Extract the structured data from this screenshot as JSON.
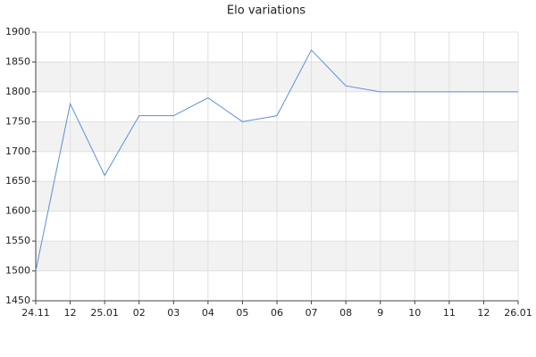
{
  "chart_data": {
    "type": "line",
    "title": "Elo variations",
    "categories": [
      "24.11",
      "12",
      "25.01",
      "02",
      "03",
      "04",
      "05",
      "06",
      "07",
      "08",
      "9",
      "10",
      "11",
      "12",
      "26.01"
    ],
    "series": [
      {
        "name": "Elo",
        "color": "#5b8fd9",
        "values": [
          1500,
          1780,
          1660,
          1760,
          1760,
          1790,
          1750,
          1760,
          1870,
          1810,
          1800,
          1800,
          1800,
          1800,
          1800
        ]
      }
    ],
    "ylim": [
      1450,
      1900
    ],
    "yticks": [
      1450,
      1500,
      1550,
      1600,
      1650,
      1700,
      1750,
      1800,
      1850,
      1900
    ],
    "grid": true,
    "band_color": "#f2f2f2"
  }
}
